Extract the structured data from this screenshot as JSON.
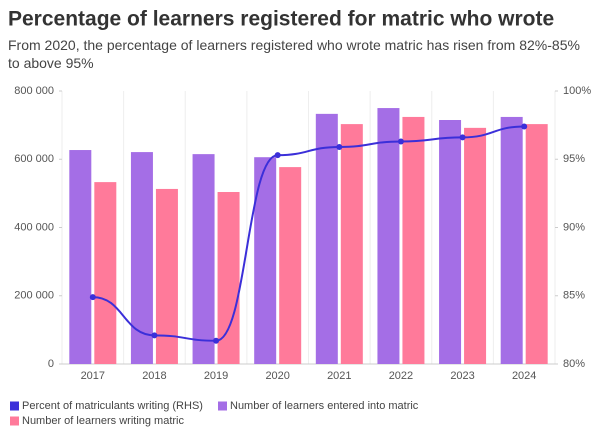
{
  "chart_data": {
    "type": "bar_line",
    "title": "Percentage of learners registered for matric who wrote",
    "subtitle": "From 2020, the percentage of learners registered who wrote matric has risen from 82%-85% to above 95%",
    "categories": [
      "2017",
      "2018",
      "2019",
      "2020",
      "2021",
      "2022",
      "2023",
      "2024"
    ],
    "series": [
      {
        "name": "Percent of matriculants writing (RHS)",
        "color": "#3b2fd9",
        "type": "line",
        "axis": "y2",
        "values": [
          84.9,
          82.1,
          81.7,
          95.3,
          95.9,
          96.3,
          96.6,
          97.4
        ]
      },
      {
        "name": "Number of learners entered into matric",
        "color": "#a46ee6",
        "type": "bar",
        "values": [
          627000,
          621000,
          615000,
          606000,
          733000,
          750000,
          715000,
          724000
        ]
      },
      {
        "name": "Number of learners writing matric",
        "color": "#ff7a9a",
        "type": "bar",
        "values": [
          533000,
          513000,
          504000,
          577000,
          703000,
          724000,
          692000,
          703000
        ]
      }
    ],
    "ylim": [
      0,
      800000
    ],
    "yticks": [
      0,
      {
        "value": 200000,
        "label": "200 000"
      },
      {
        "value": 400000,
        "label": "400 000"
      },
      {
        "value": 600000,
        "label": "600 000"
      },
      {
        "value": 800000,
        "label": "800 000"
      }
    ],
    "y2lim": [
      80,
      100
    ],
    "y2ticks": [
      {
        "value": 80,
        "label": "80%"
      },
      {
        "value": 85,
        "label": "85%"
      },
      {
        "value": 90,
        "label": "90%"
      },
      {
        "value": 95,
        "label": "95%"
      },
      {
        "value": 100,
        "label": "100%"
      }
    ],
    "legend": "bottom"
  }
}
